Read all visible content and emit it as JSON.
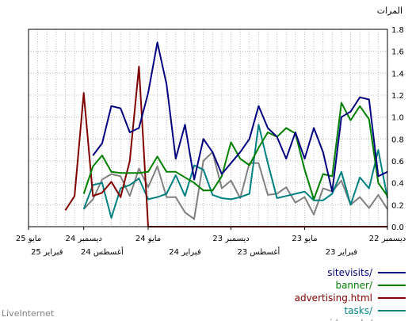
{
  "brand": "LiveInternet",
  "chart_data": {
    "type": "line",
    "title": "المرات",
    "ylim": [
      0,
      1.8
    ],
    "yticks": [
      "0.0",
      "0.2",
      "0.4",
      "0.6",
      "0.8",
      "1.0",
      "1.2",
      "1.4",
      "1.6",
      "1.8"
    ],
    "x_count": 40,
    "x_direction": "right-to-left",
    "x_labels_top": [
      {
        "index": 0,
        "label": "ديسمبر 22"
      },
      {
        "index": 9,
        "label": "مايو 23"
      },
      {
        "index": 17,
        "label": "ديسمبر 23"
      },
      {
        "index": 26,
        "label": "مايو 24"
      },
      {
        "index": 33,
        "label": "ديسمبر 24"
      },
      {
        "index": 39,
        "label": "مايو 25"
      }
    ],
    "x_labels_bottom": [
      {
        "index": 5,
        "label": "فبراير 23"
      },
      {
        "index": 14,
        "label": "أغسطس 23"
      },
      {
        "index": 22,
        "label": "فبراير 24"
      },
      {
        "index": 31,
        "label": "أغسطس 24"
      },
      {
        "index": 37,
        "label": "فبراير 25"
      }
    ],
    "grid": true,
    "legend_position": "bottom-right",
    "series": [
      {
        "name": "sitevisits/",
        "color": "#000080",
        "values": [
          0.5,
          0.46,
          1.16,
          1.18,
          1.05,
          1.0,
          0.32,
          0.68,
          0.9,
          0.62,
          0.86,
          0.62,
          0.82,
          0.9,
          1.1,
          0.8,
          0.68,
          0.58,
          0.48,
          0.68,
          0.8,
          0.43,
          0.93,
          0.62,
          1.3,
          1.68,
          1.22,
          0.9,
          0.86,
          1.08,
          1.1,
          0.76,
          0.65
        ]
      },
      {
        "name": "banner/",
        "color": "#008000",
        "values": [
          0.28,
          0.4,
          0.98,
          1.1,
          0.97,
          1.13,
          0.46,
          0.48,
          0.25,
          0.52,
          0.85,
          0.9,
          0.82,
          0.86,
          0.72,
          0.56,
          0.62,
          0.77,
          0.46,
          0.33,
          0.33,
          0.4,
          0.45,
          0.5,
          0.5,
          0.64,
          0.5,
          0.49,
          0.49,
          0.49,
          0.5,
          0.65,
          0.55,
          0.3
        ]
      },
      {
        "name": "advertising.html",
        "color": "#800000",
        "values": [
          0.0,
          0.0,
          0.0,
          0.0,
          0.0,
          0.0,
          0.0,
          0.0,
          0.0,
          0.0,
          0.0,
          0.0,
          0.0,
          0.0,
          0.0,
          0.0,
          0.0,
          0.0,
          0.0,
          0.0,
          0.0,
          0.0,
          0.0,
          0.0,
          0.0,
          0.0,
          0.0,
          1.46,
          0.6,
          0.27,
          0.41,
          0.31,
          0.28,
          1.22,
          0.28,
          0.15
        ]
      },
      {
        "name": "tasks/",
        "color": "#008080",
        "values": [
          0.26,
          0.7,
          0.35,
          0.45,
          0.2,
          0.5,
          0.3,
          0.24,
          0.24,
          0.32,
          0.3,
          0.28,
          0.26,
          0.58,
          0.93,
          0.3,
          0.27,
          0.25,
          0.26,
          0.29,
          0.52,
          0.56,
          0.28,
          0.47,
          0.3,
          0.27,
          0.25,
          0.44,
          0.38,
          0.35,
          0.08,
          0.4,
          0.38,
          0.16
        ]
      },
      {
        "name": "videosale/",
        "color": "#808080",
        "values": [
          0.16,
          0.29,
          0.17,
          0.27,
          0.2,
          0.42,
          0.32,
          0.35,
          0.11,
          0.27,
          0.22,
          0.36,
          0.3,
          0.29,
          0.58,
          0.58,
          0.26,
          0.42,
          0.35,
          0.68,
          0.6,
          0.07,
          0.13,
          0.27,
          0.27,
          0.55,
          0.36,
          0.53,
          0.28,
          0.46,
          0.48,
          0.43,
          0.25,
          0.16
        ]
      }
    ]
  }
}
